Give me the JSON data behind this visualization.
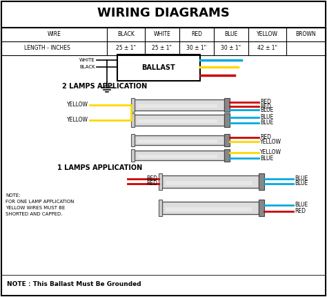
{
  "title": "WIRING DIAGRAMS",
  "background_color": "#ffffff",
  "table": {
    "headers": [
      "WIRE",
      "BLACK",
      "WHITE",
      "RED",
      "BLUE",
      "YELLOW",
      "BROWN"
    ],
    "row": [
      "LENGTH - INCHES",
      "25 ± 1\"",
      "25 ± 1\"",
      "30 ± 1\"",
      "30 ± 1\"",
      "42 ± 1\"",
      ""
    ]
  },
  "wire_colors": {
    "yellow": "#FFD700",
    "red": "#CC0000",
    "blue": "#00AADD",
    "white": "#FFFFFF",
    "black": "#000000",
    "brown": "#8B4513",
    "gray": "#AAAAAA"
  },
  "note1": "NOTE:\nFOR ONE LAMP APPLICATION\nYELLOW WIRES MUST BE\nSHORTED AND CAPPED.",
  "note2": "NOTE : This Ballast Must Be Grounded"
}
